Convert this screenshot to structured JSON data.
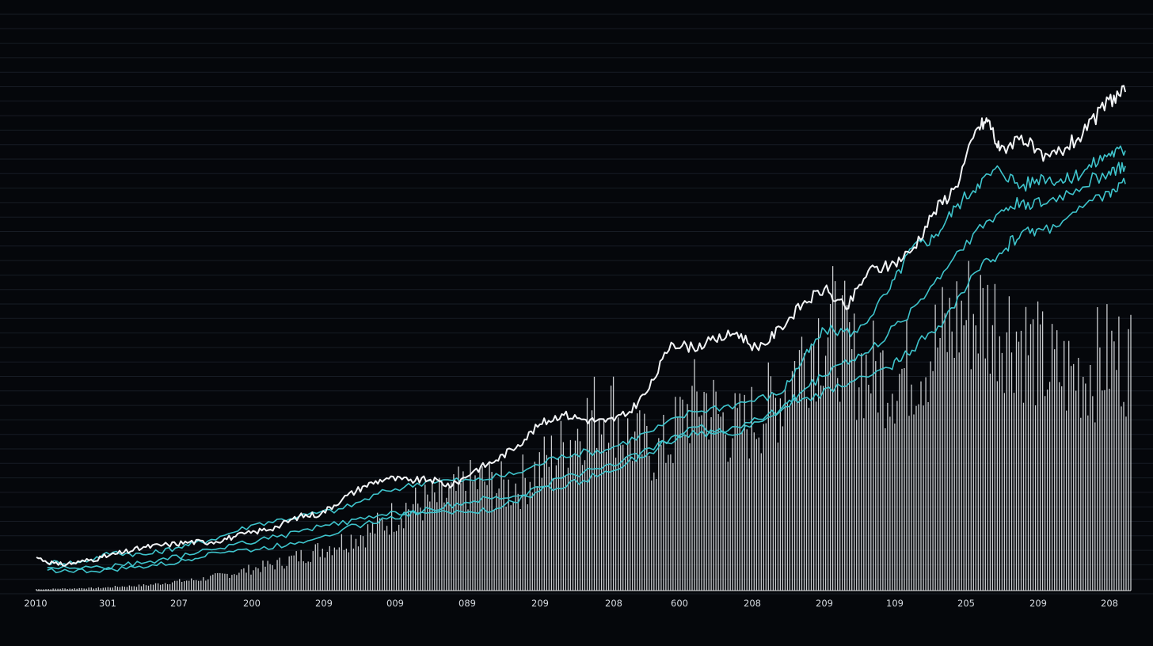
{
  "chart_data": {
    "type": "line",
    "title": "",
    "xlabel": "",
    "ylabel": "",
    "x_ticks": [
      "2010",
      "301",
      "207",
      "200",
      "209",
      "009",
      "089",
      "209",
      "208",
      "600",
      "208",
      "209",
      "109",
      "205",
      "209",
      "208"
    ],
    "x_range": [
      0,
      1000
    ],
    "y_range": [
      0,
      100
    ],
    "grid": "horizontal",
    "legend": "none",
    "colors": {
      "background": "#05070b",
      "grid": "#171c24",
      "main_line": "#f2f4f6",
      "secondary_lines": "#3ec4cc",
      "volume_bars": "#e6e8ea",
      "tick_text": "#d8dde3"
    },
    "series": [
      {
        "role": "main",
        "points": [
          [
            0,
            6.5
          ],
          [
            20,
            5
          ],
          [
            40,
            5.6
          ],
          [
            60,
            6.5
          ],
          [
            80,
            7.5
          ],
          [
            100,
            8.5
          ],
          [
            120,
            9
          ],
          [
            140,
            9.5
          ],
          [
            160,
            9.5
          ],
          [
            180,
            10.5
          ],
          [
            200,
            11.5
          ],
          [
            220,
            12.5
          ],
          [
            240,
            14.5
          ],
          [
            260,
            15
          ],
          [
            280,
            18
          ],
          [
            300,
            20.5
          ],
          [
            320,
            22
          ],
          [
            340,
            21.5
          ],
          [
            360,
            21.7
          ],
          [
            380,
            20.5
          ],
          [
            400,
            23.5
          ],
          [
            420,
            25.5
          ],
          [
            440,
            28.5
          ],
          [
            460,
            32.5
          ],
          [
            480,
            34.5
          ],
          [
            500,
            33.5
          ],
          [
            520,
            33
          ],
          [
            540,
            34.5
          ],
          [
            560,
            39.5
          ],
          [
            580,
            48.5
          ],
          [
            600,
            47.5
          ],
          [
            620,
            49
          ],
          [
            640,
            50.5
          ],
          [
            660,
            47
          ],
          [
            680,
            51.5
          ],
          [
            700,
            56
          ],
          [
            720,
            59
          ],
          [
            740,
            55
          ],
          [
            760,
            62.5
          ],
          [
            780,
            63.5
          ],
          [
            800,
            66.5
          ],
          [
            820,
            74
          ],
          [
            840,
            79
          ],
          [
            860,
            90.5
          ],
          [
            870,
            92
          ],
          [
            880,
            86
          ],
          [
            900,
            89
          ],
          [
            920,
            84
          ],
          [
            940,
            86.5
          ],
          [
            960,
            90
          ],
          [
            980,
            96
          ],
          [
            995,
            97.5
          ]
        ]
      },
      {
        "role": "secondary",
        "points": [
          [
            10,
            5.5
          ],
          [
            40,
            5.5
          ],
          [
            70,
            7.5
          ],
          [
            100,
            7
          ],
          [
            130,
            8.5
          ],
          [
            160,
            10
          ],
          [
            200,
            13
          ],
          [
            240,
            14.5
          ],
          [
            280,
            16
          ],
          [
            320,
            19.5
          ],
          [
            360,
            21.5
          ],
          [
            400,
            21.5
          ],
          [
            440,
            23
          ],
          [
            480,
            26.5
          ],
          [
            520,
            27.5
          ],
          [
            560,
            31
          ],
          [
            600,
            35
          ],
          [
            640,
            36.5
          ],
          [
            680,
            38.5
          ],
          [
            700,
            45
          ],
          [
            720,
            51
          ],
          [
            750,
            50.5
          ],
          [
            780,
            59
          ],
          [
            800,
            67
          ],
          [
            820,
            69
          ],
          [
            840,
            75
          ],
          [
            860,
            79.5
          ],
          [
            880,
            82.5
          ],
          [
            900,
            79
          ],
          [
            920,
            81
          ],
          [
            940,
            80
          ],
          [
            960,
            82.5
          ],
          [
            980,
            85.5
          ],
          [
            995,
            86
          ]
        ]
      },
      {
        "role": "secondary",
        "points": [
          [
            10,
            4
          ],
          [
            50,
            3.8
          ],
          [
            90,
            4.5
          ],
          [
            130,
            5.5
          ],
          [
            160,
            7.5
          ],
          [
            200,
            8
          ],
          [
            240,
            9.5
          ],
          [
            280,
            12
          ],
          [
            320,
            14
          ],
          [
            360,
            16
          ],
          [
            400,
            17.5
          ],
          [
            440,
            18.5
          ],
          [
            480,
            22
          ],
          [
            520,
            24.5
          ],
          [
            560,
            27
          ],
          [
            600,
            32
          ],
          [
            640,
            30.5
          ],
          [
            680,
            35.5
          ],
          [
            700,
            39
          ],
          [
            730,
            44
          ],
          [
            760,
            46.5
          ],
          [
            790,
            52.5
          ],
          [
            820,
            60
          ],
          [
            850,
            68.5
          ],
          [
            880,
            74
          ],
          [
            900,
            76
          ],
          [
            920,
            75.5
          ],
          [
            950,
            78.5
          ],
          [
            980,
            82
          ],
          [
            995,
            83
          ]
        ]
      },
      {
        "role": "secondary",
        "points": [
          [
            10,
            4.5
          ],
          [
            60,
            4.5
          ],
          [
            100,
            5.5
          ],
          [
            140,
            7
          ],
          [
            180,
            9
          ],
          [
            220,
            10.5
          ],
          [
            260,
            12.5
          ],
          [
            300,
            14
          ],
          [
            340,
            15.5
          ],
          [
            380,
            15
          ],
          [
            420,
            16
          ],
          [
            460,
            19.5
          ],
          [
            500,
            21.5
          ],
          [
            540,
            25
          ],
          [
            580,
            30
          ],
          [
            620,
            31
          ],
          [
            660,
            33.5
          ],
          [
            700,
            37.5
          ],
          [
            740,
            40
          ],
          [
            780,
            43.5
          ],
          [
            800,
            47
          ],
          [
            830,
            53
          ],
          [
            860,
            62.5
          ],
          [
            880,
            66
          ],
          [
            900,
            70
          ],
          [
            920,
            70.5
          ],
          [
            950,
            74
          ],
          [
            980,
            78
          ],
          [
            995,
            79.5
          ]
        ]
      }
    ],
    "volume_bars": [
      0.3,
      0.3,
      0.4,
      0.4,
      0.5,
      0.5,
      0.6,
      0.8,
      0.9,
      1,
      1.2,
      1.5,
      1.8,
      2,
      2.2,
      2.6,
      3,
      3.5,
      4,
      4.5,
      5,
      5.4,
      6.3,
      7,
      7.8,
      8.6,
      9.5,
      10.3,
      11.2,
      12,
      13.4,
      15,
      16.8,
      17.2,
      17.9,
      18.3,
      19,
      20.5,
      21.5,
      22,
      21,
      20.5,
      21.8,
      23.5,
      25.5,
      27.2,
      29.5,
      32.5,
      35,
      36.7,
      37,
      31.5,
      30,
      28.7,
      27.5,
      30,
      34.5,
      37.5,
      39,
      35.6,
      33,
      32.5,
      34,
      36.2,
      37.5,
      41,
      45.5,
      49.5,
      52,
      53.2,
      50.5,
      46,
      44.6,
      44,
      43.5,
      43.8,
      45,
      46.6,
      49.5,
      51.7,
      54.8,
      56,
      55.6,
      54.8,
      53.7,
      52.5,
      49.5,
      46.8,
      44.6,
      43.8,
      43.6,
      44.4,
      45.7,
      47,
      47,
      46.7
    ]
  }
}
